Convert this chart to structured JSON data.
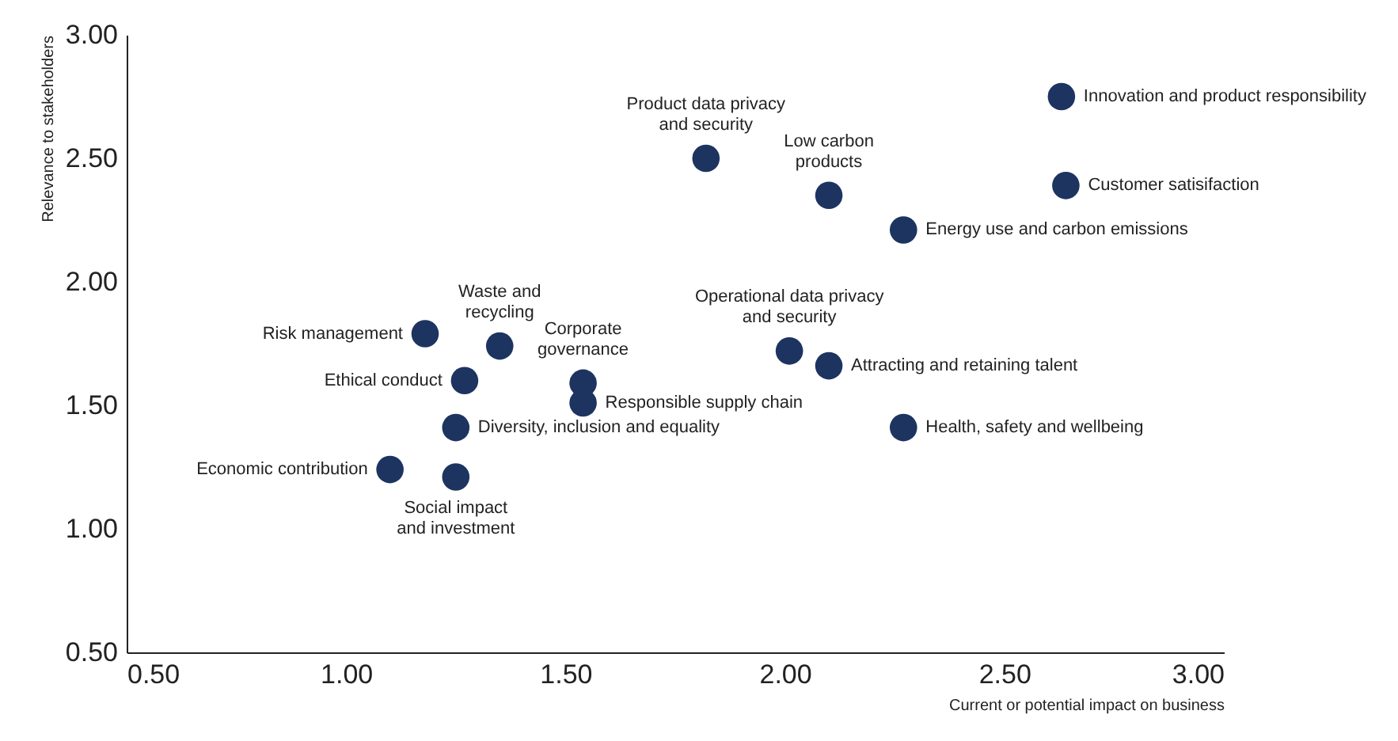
{
  "chart_data": {
    "type": "scatter",
    "xlabel": "Current or potential impact on business",
    "ylabel": "Relevance to stakeholders",
    "xlim": [
      0.5,
      3.0
    ],
    "ylim": [
      0.5,
      3.0
    ],
    "xticks": [
      {
        "value": 0.5,
        "label": "0.50"
      },
      {
        "value": 1,
        "label": "1.00"
      },
      {
        "value": 1.5,
        "label": "1.50"
      },
      {
        "value": 2,
        "label": "2.00"
      },
      {
        "value": 2.5,
        "label": "2.50"
      },
      {
        "value": 3,
        "label": "3.00"
      }
    ],
    "yticks": [
      {
        "value": 0.5,
        "label": "0.50"
      },
      {
        "value": 1,
        "label": "1.00"
      },
      {
        "value": 1.5,
        "label": "1.50"
      },
      {
        "value": 2,
        "label": "2.00"
      },
      {
        "value": 2.5,
        "label": "2.50"
      },
      {
        "value": 3,
        "label": "3.00"
      }
    ],
    "grid": false,
    "marker": "circle",
    "series": [
      {
        "color": "#1d3461",
        "x": [
          2.63,
          2.64,
          2.27,
          1.82,
          2.1,
          1.35,
          1.18,
          1.27,
          1.54,
          1.54,
          1.25,
          1.1,
          1.25,
          2.01,
          2.1,
          2.27
        ],
        "values": [
          2.75,
          2.39,
          2.21,
          2.5,
          2.35,
          1.74,
          1.79,
          1.6,
          1.59,
          1.51,
          1.41,
          1.24,
          1.21,
          1.72,
          1.66,
          1.41
        ]
      }
    ],
    "annotations": [
      {
        "text": "Innovation and product responsibility",
        "x": 2.63,
        "y": 2.75
      },
      {
        "text": "Customer  satisifaction",
        "x": 2.64,
        "y": 2.39
      },
      {
        "text": "Energy use and carbon emissions",
        "x": 2.27,
        "y": 2.21
      },
      {
        "text": "Product data privacy\nand security",
        "x": 1.82,
        "y": 2.5
      },
      {
        "text": "Low carbon\nproducts",
        "x": 2.1,
        "y": 2.35
      },
      {
        "text": "Waste and\nrecycling",
        "x": 1.35,
        "y": 1.74
      },
      {
        "text": "Risk management",
        "x": 1.18,
        "y": 1.79
      },
      {
        "text": "Ethical conduct",
        "x": 1.27,
        "y": 1.6
      },
      {
        "text": "Corporate\ngovernance",
        "x": 1.54,
        "y": 1.59
      },
      {
        "text": "Responsible supply chain",
        "x": 1.54,
        "y": 1.51
      },
      {
        "text": "Diversity, inclusion and equality",
        "x": 1.25,
        "y": 1.41
      },
      {
        "text": "Economic contribution",
        "x": 1.1,
        "y": 1.24
      },
      {
        "text": "Social impact\nand investment",
        "x": 1.25,
        "y": 1.21
      },
      {
        "text": "Operational data privacy\nand security",
        "x": 2.01,
        "y": 1.72
      },
      {
        "text": "Attracting and retaining talent",
        "x": 2.1,
        "y": 1.66
      },
      {
        "text": "Health, safety and wellbeing",
        "x": 2.27,
        "y": 1.41
      }
    ]
  }
}
